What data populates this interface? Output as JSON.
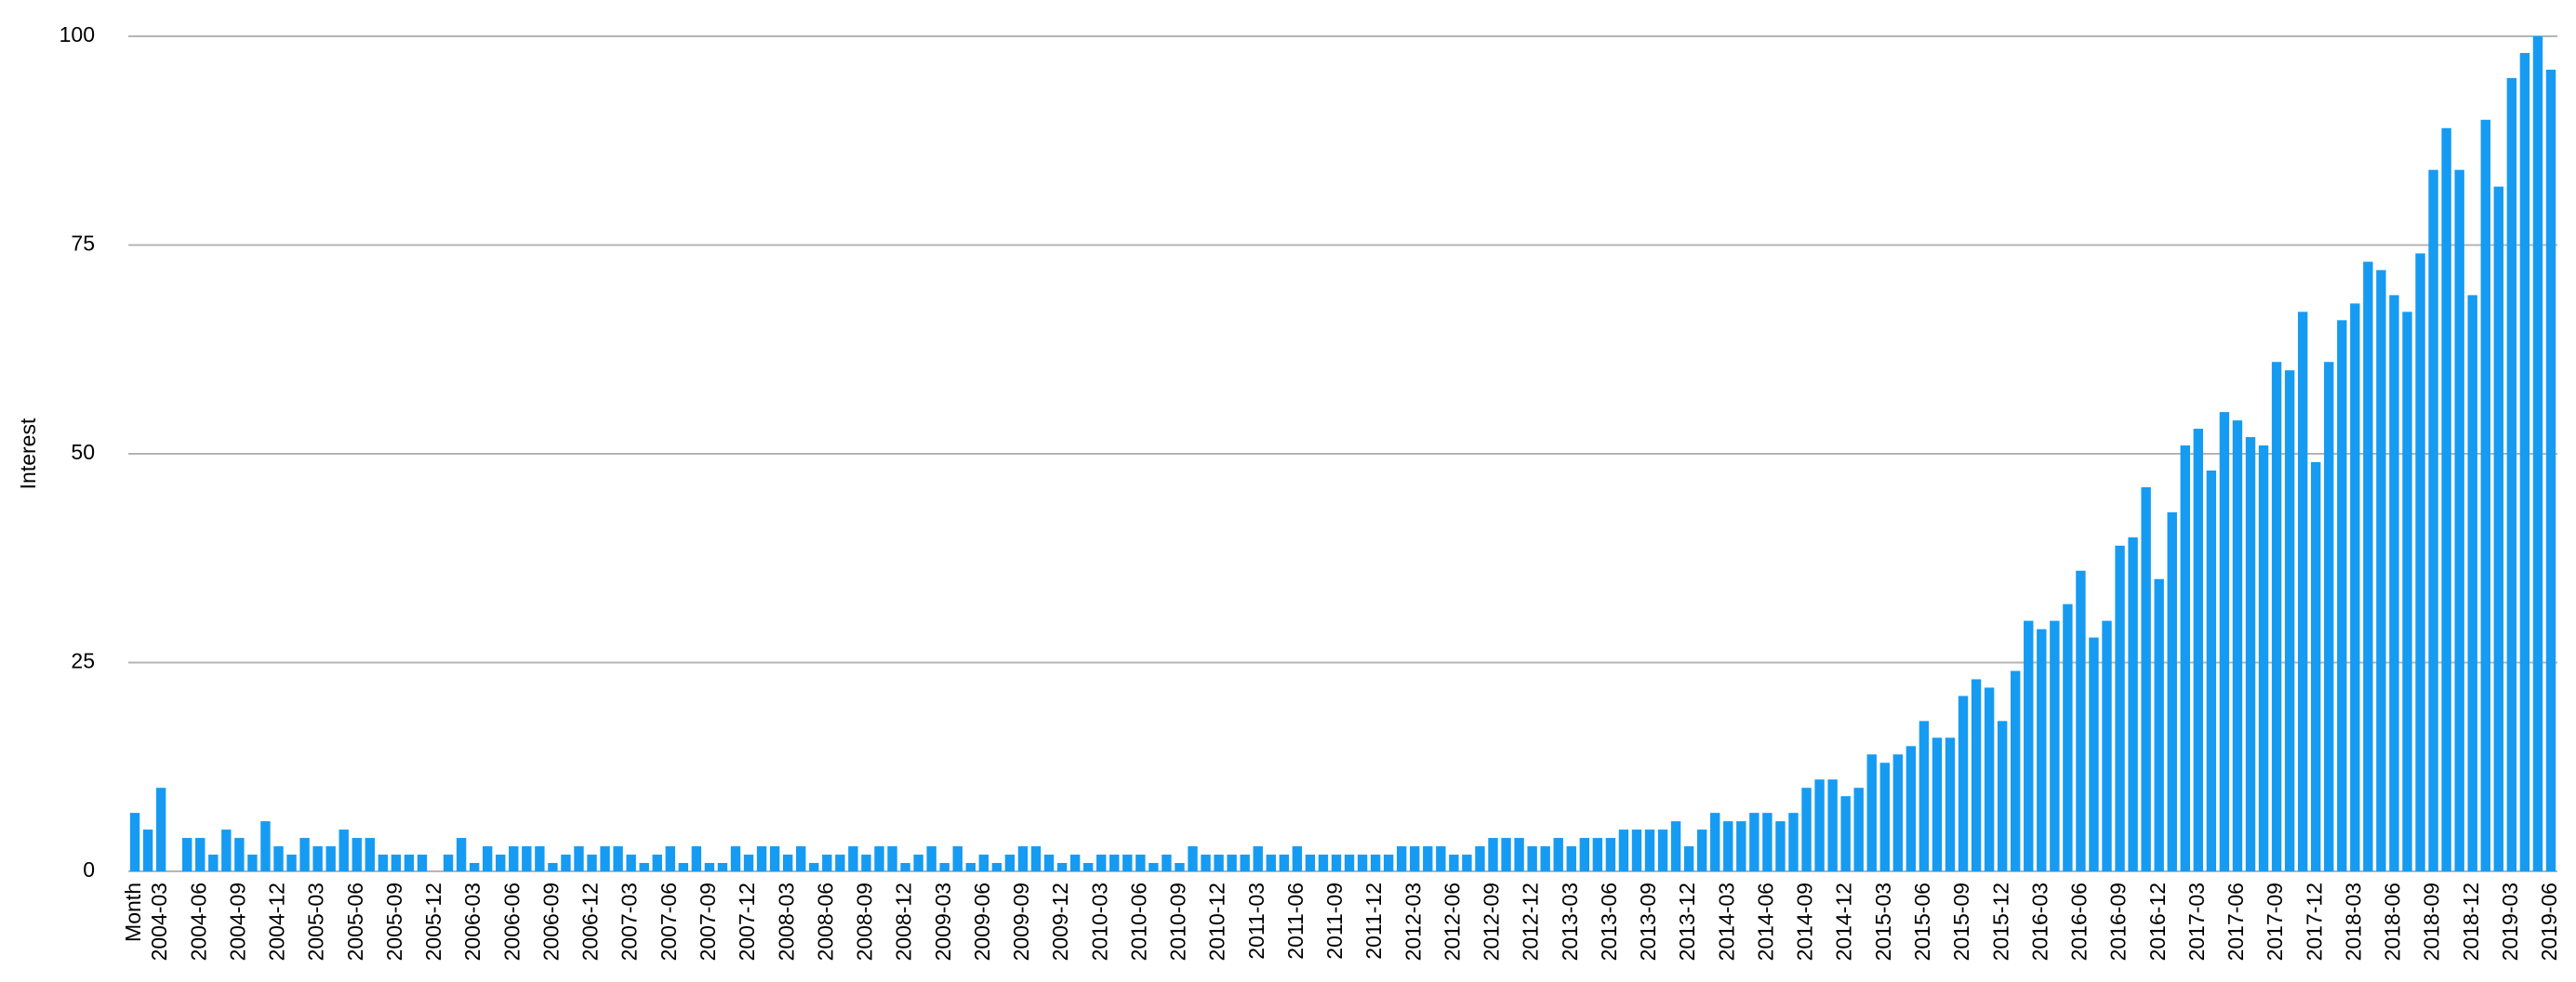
{
  "chart_data": {
    "type": "bar",
    "ylabel": "Interest",
    "color": "#169bf3",
    "grid": true,
    "ylim": [
      0,
      100
    ],
    "yticks": [
      0,
      25,
      50,
      75,
      100
    ],
    "categories": [
      "Month",
      null,
      "2004-03",
      null,
      null,
      "2004-06",
      null,
      null,
      "2004-09",
      null,
      null,
      "2004-12",
      null,
      null,
      "2005-03",
      null,
      null,
      "2005-06",
      null,
      null,
      "2005-09",
      null,
      null,
      "2005-12",
      null,
      null,
      "2006-03",
      null,
      null,
      "2006-06",
      null,
      null,
      "2006-09",
      null,
      null,
      "2006-12",
      null,
      null,
      "2007-03",
      null,
      null,
      "2007-06",
      null,
      null,
      "2007-09",
      null,
      null,
      "2007-12",
      null,
      null,
      "2008-03",
      null,
      null,
      "2008-06",
      null,
      null,
      "2008-09",
      null,
      null,
      "2008-12",
      null,
      null,
      "2009-03",
      null,
      null,
      "2009-06",
      null,
      null,
      "2009-09",
      null,
      null,
      "2009-12",
      null,
      null,
      "2010-03",
      null,
      null,
      "2010-06",
      null,
      null,
      "2010-09",
      null,
      null,
      "2010-12",
      null,
      null,
      "2011-03",
      null,
      null,
      "2011-06",
      null,
      null,
      "2011-09",
      null,
      null,
      "2011-12",
      null,
      null,
      "2012-03",
      null,
      null,
      "2012-06",
      null,
      null,
      "2012-09",
      null,
      null,
      "2012-12",
      null,
      null,
      "2013-03",
      null,
      null,
      "2013-06",
      null,
      null,
      "2013-09",
      null,
      null,
      "2013-12",
      null,
      null,
      "2014-03",
      null,
      null,
      "2014-06",
      null,
      null,
      "2014-09",
      null,
      null,
      "2014-12",
      null,
      null,
      "2015-03",
      null,
      null,
      "2015-06",
      null,
      null,
      "2015-09",
      null,
      null,
      "2015-12",
      null,
      null,
      "2016-03",
      null,
      null,
      "2016-06",
      null,
      null,
      "2016-09",
      null,
      null,
      "2016-12",
      null,
      null,
      "2017-03",
      null,
      null,
      "2017-06",
      null,
      null,
      "2017-09",
      null,
      null,
      "2017-12",
      null,
      null,
      "2018-03",
      null,
      null,
      "2018-06",
      null,
      null,
      "2018-09",
      null,
      null,
      "2018-12",
      null,
      null,
      "2019-03",
      null,
      null,
      "2019-06"
    ],
    "values": [
      7,
      5,
      10,
      0,
      4,
      4,
      2,
      5,
      4,
      2,
      6,
      3,
      2,
      4,
      3,
      3,
      5,
      4,
      4,
      2,
      2,
      2,
      2,
      0,
      2,
      4,
      1,
      3,
      2,
      3,
      3,
      3,
      1,
      2,
      3,
      2,
      3,
      3,
      2,
      1,
      2,
      3,
      1,
      3,
      1,
      1,
      3,
      2,
      3,
      3,
      2,
      3,
      1,
      2,
      2,
      3,
      2,
      3,
      3,
      1,
      2,
      3,
      1,
      3,
      1,
      2,
      1,
      2,
      3,
      3,
      2,
      1,
      2,
      1,
      2,
      2,
      2,
      2,
      1,
      2,
      1,
      3,
      2,
      2,
      2,
      2,
      3,
      2,
      2,
      3,
      2,
      2,
      2,
      2,
      2,
      2,
      2,
      3,
      3,
      3,
      3,
      2,
      2,
      3,
      4,
      4,
      4,
      3,
      3,
      4,
      3,
      4,
      4,
      4,
      5,
      5,
      5,
      5,
      6,
      3,
      5,
      7,
      6,
      6,
      7,
      7,
      6,
      7,
      10,
      11,
      11,
      9,
      10,
      14,
      13,
      14,
      15,
      18,
      16,
      16,
      21,
      23,
      22,
      18,
      24,
      30,
      29,
      30,
      32,
      36,
      28,
      30,
      39,
      40,
      46,
      35,
      43,
      51,
      53,
      48,
      55,
      54,
      52,
      51,
      61,
      60,
      67,
      49,
      61,
      66,
      68,
      73,
      72,
      69,
      67,
      74,
      84,
      89,
      84,
      69,
      90,
      82,
      95,
      98,
      100,
      96
    ]
  }
}
